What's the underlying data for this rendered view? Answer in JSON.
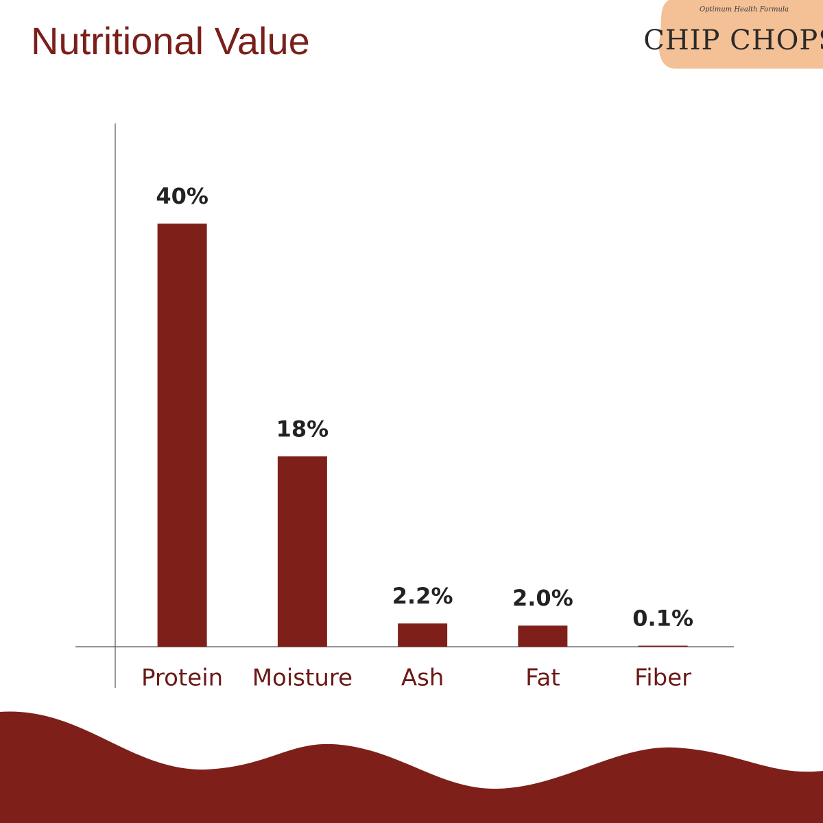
{
  "logo": {
    "tagline": "Optimum Health Formula",
    "name": "CHIP CHOPS"
  },
  "chart_data": {
    "type": "bar",
    "title": "Nutritional Value",
    "categories": [
      "Protein",
      "Moisture",
      "Ash",
      "Fat",
      "Fiber"
    ],
    "values": [
      40,
      18,
      2.2,
      2.0,
      0.1
    ],
    "value_labels": [
      "40%",
      "18%",
      "2.2%",
      "2.0%",
      "0.1%"
    ],
    "color": "#7e2019"
  }
}
